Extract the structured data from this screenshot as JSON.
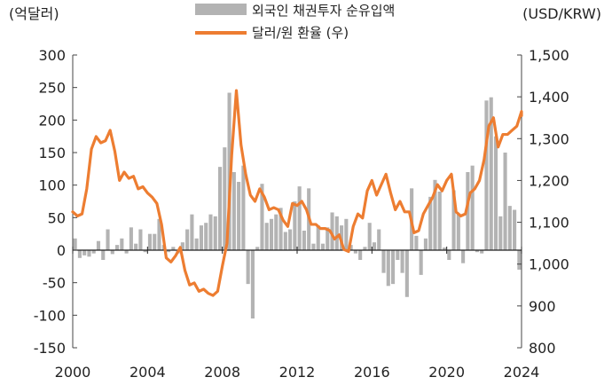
{
  "chart_data": {
    "type": "bar+line",
    "left_unit": "(억달러)",
    "right_unit": "(USD/KRW)",
    "legend": [
      {
        "label": "외국인 채권투자 순유입액",
        "swatch": "bar",
        "color": "#b3b3b3"
      },
      {
        "label": "달러/원 환율 (우)",
        "swatch": "line",
        "color": "#ed7d31"
      }
    ],
    "left_axis": {
      "min": -150,
      "max": 300,
      "ticks": [
        "300",
        "250",
        "200",
        "150",
        "100",
        "50",
        "0",
        "-50",
        "-100",
        "-150"
      ]
    },
    "right_axis": {
      "min": 800,
      "max": 1500,
      "ticks": [
        "1,500",
        "1,400",
        "1,300",
        "1,200",
        "1,100",
        "1,000",
        "900",
        "800"
      ]
    },
    "x_ticks": [
      "2000",
      "2004",
      "2008",
      "2012",
      "2016",
      "2020",
      "2024"
    ],
    "x_range": [
      2000,
      2024
    ],
    "bar_series": {
      "name": "외국인 채권투자 순유입액",
      "color": "#b3b3b3",
      "x": [
        2000.0,
        2000.25,
        2000.5,
        2000.75,
        2001.0,
        2001.25,
        2001.5,
        2001.75,
        2002.0,
        2002.25,
        2002.5,
        2002.75,
        2003.0,
        2003.25,
        2003.5,
        2003.75,
        2004.0,
        2004.25,
        2004.5,
        2004.75,
        2005.0,
        2005.25,
        2005.5,
        2005.75,
        2006.0,
        2006.25,
        2006.5,
        2006.75,
        2007.0,
        2007.25,
        2007.5,
        2007.75,
        2008.0,
        2008.25,
        2008.5,
        2008.75,
        2009.0,
        2009.25,
        2009.5,
        2009.75,
        2010.0,
        2010.25,
        2010.5,
        2010.75,
        2011.0,
        2011.25,
        2011.5,
        2011.75,
        2012.0,
        2012.25,
        2012.5,
        2012.75,
        2013.0,
        2013.25,
        2013.5,
        2013.75,
        2014.0,
        2014.25,
        2014.5,
        2014.75,
        2015.0,
        2015.25,
        2015.5,
        2015.75,
        2016.0,
        2016.25,
        2016.5,
        2016.75,
        2017.0,
        2017.25,
        2017.5,
        2017.75,
        2018.0,
        2018.25,
        2018.5,
        2018.75,
        2019.0,
        2019.25,
        2019.5,
        2019.75,
        2020.0,
        2020.25,
        2020.5,
        2020.75,
        2021.0,
        2021.25,
        2021.5,
        2021.75,
        2022.0,
        2022.25,
        2022.5,
        2022.75,
        2023.0,
        2023.25,
        2023.5,
        2023.75
      ],
      "values": [
        18,
        -12,
        -8,
        -10,
        -5,
        14,
        -15,
        32,
        -6,
        8,
        18,
        -5,
        35,
        10,
        32,
        -3,
        25,
        25,
        48,
        8,
        -3,
        5,
        -5,
        12,
        32,
        55,
        18,
        38,
        42,
        55,
        52,
        128,
        158,
        242,
        120,
        105,
        130,
        -52,
        -105,
        5,
        102,
        42,
        48,
        55,
        65,
        28,
        32,
        75,
        98,
        30,
        95,
        10,
        38,
        10,
        35,
        58,
        52,
        38,
        48,
        8,
        -5,
        -15,
        5,
        42,
        12,
        32,
        -35,
        -55,
        -52,
        -15,
        -35,
        -72,
        95,
        22,
        -38,
        18,
        82,
        108,
        90,
        4,
        -15,
        92,
        55,
        -20,
        120,
        130,
        -3,
        -5,
        230,
        235,
        175,
        52,
        150,
        68,
        62,
        -30
      ]
    },
    "line_series": {
      "name": "달러/원 환율 (우)",
      "color": "#ed7d31",
      "x": [
        2000.0,
        2000.25,
        2000.5,
        2000.75,
        2001.0,
        2001.25,
        2001.5,
        2001.75,
        2002.0,
        2002.25,
        2002.5,
        2002.75,
        2003.0,
        2003.25,
        2003.5,
        2003.75,
        2004.0,
        2004.25,
        2004.5,
        2004.75,
        2005.0,
        2005.25,
        2005.5,
        2005.75,
        2006.0,
        2006.25,
        2006.5,
        2006.75,
        2007.0,
        2007.25,
        2007.5,
        2007.75,
        2008.0,
        2008.25,
        2008.5,
        2008.75,
        2009.0,
        2009.25,
        2009.5,
        2009.75,
        2010.0,
        2010.25,
        2010.5,
        2010.75,
        2011.0,
        2011.25,
        2011.5,
        2011.75,
        2012.0,
        2012.25,
        2012.5,
        2012.75,
        2013.0,
        2013.25,
        2013.5,
        2013.75,
        2014.0,
        2014.25,
        2014.5,
        2014.75,
        2015.0,
        2015.25,
        2015.5,
        2015.75,
        2016.0,
        2016.25,
        2016.5,
        2016.75,
        2017.0,
        2017.25,
        2017.5,
        2017.75,
        2018.0,
        2018.25,
        2018.5,
        2018.75,
        2019.0,
        2019.25,
        2019.5,
        2019.75,
        2020.0,
        2020.25,
        2020.5,
        2020.75,
        2021.0,
        2021.25,
        2021.5,
        2021.75,
        2022.0,
        2022.25,
        2022.5,
        2022.75,
        2023.0,
        2023.25,
        2023.5,
        2023.75,
        2024.0,
        2024.25,
        2024.5
      ],
      "values": [
        1125,
        1115,
        1120,
        1180,
        1275,
        1305,
        1290,
        1295,
        1320,
        1270,
        1200,
        1220,
        1205,
        1210,
        1180,
        1185,
        1170,
        1160,
        1145,
        1095,
        1015,
        1005,
        1020,
        1040,
        985,
        950,
        955,
        935,
        940,
        930,
        925,
        935,
        995,
        1050,
        1260,
        1415,
        1285,
        1215,
        1165,
        1150,
        1180,
        1160,
        1130,
        1135,
        1130,
        1105,
        1090,
        1145,
        1140,
        1150,
        1130,
        1095,
        1095,
        1085,
        1085,
        1080,
        1060,
        1070,
        1035,
        1030,
        1090,
        1120,
        1110,
        1175,
        1200,
        1165,
        1190,
        1215,
        1170,
        1130,
        1150,
        1125,
        1125,
        1075,
        1080,
        1120,
        1140,
        1160,
        1190,
        1175,
        1200,
        1215,
        1125,
        1115,
        1120,
        1170,
        1180,
        1200,
        1250,
        1330,
        1350,
        1280,
        1310,
        1310,
        1320,
        1330,
        1365,
        1360,
        1355
      ]
    }
  }
}
